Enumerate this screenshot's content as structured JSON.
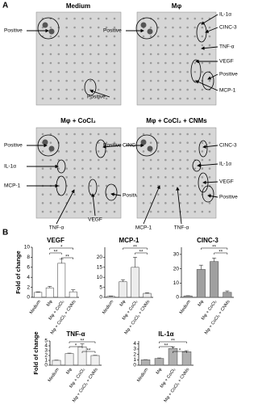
{
  "panel_a": {
    "letter": "A",
    "blots": [
      {
        "title": "Medium",
        "labels": [
          "Positive",
          "Positive"
        ]
      },
      {
        "title": "Mφ",
        "labels": [
          "Positive",
          "IL-1α",
          "CINC-3",
          "TNF-α",
          "VEGF",
          "Positive",
          "MCP-1"
        ]
      },
      {
        "title": "Mφ + CoCl₂",
        "labels": [
          "Positive",
          "IL-1α",
          "MCP-1",
          "CINC-3",
          "Positive",
          "VEGF",
          "TNF-α"
        ]
      },
      {
        "title": "Mφ + CoCl₂ + CNMs",
        "labels": [
          "Positive",
          "CINC-3",
          "IL-1α",
          "VEGF",
          "Positive",
          "MCP-1",
          "TNF-α"
        ]
      }
    ]
  },
  "panel_b": {
    "letter": "B"
  },
  "chart_data": [
    {
      "type": "bar",
      "title": "VEGF",
      "ylabel": "Fold of change",
      "categories": [
        "Medium",
        "Mφ",
        "Mφ + CoCl₂",
        "Mφ + CoCl₂ + CNMs"
      ],
      "values": [
        1,
        1.9,
        6.8,
        1.1
      ],
      "errors": [
        0.1,
        0.3,
        0.9,
        0.4
      ],
      "color": "#ffffff",
      "ylim": [
        0,
        10
      ],
      "yticks": [
        0,
        2,
        4,
        6,
        8,
        10
      ],
      "annotations": [
        {
          "label": "*",
          "from": 1,
          "to": 3
        },
        {
          "label": "**",
          "from": 1,
          "to": 2
        },
        {
          "label": "**",
          "from": 2,
          "to": 3
        }
      ]
    },
    {
      "type": "bar",
      "title": "MCP-1",
      "categories": [
        "Medium",
        "Mφ",
        "Mφ + CoCl₂",
        "Mφ + CoCl₂ + CNMs"
      ],
      "values": [
        0.5,
        7.8,
        15,
        2
      ],
      "errors": [
        0.2,
        1,
        5,
        0.3
      ],
      "color": "#ececec",
      "ylim": [
        0,
        25
      ],
      "yticks": [
        0,
        5,
        10,
        15,
        20
      ],
      "annotations": [
        {
          "label": "**",
          "from": 1,
          "to": 3
        },
        {
          "label": "**",
          "from": 2,
          "to": 3
        }
      ]
    },
    {
      "type": "bar",
      "title": "CINC-3",
      "categories": [
        "Medium",
        "Mφ",
        "Mφ + CoCl₂",
        "Mφ + CoCl₂ + CNMs"
      ],
      "values": [
        1,
        19.5,
        25,
        3.5
      ],
      "errors": [
        0.2,
        3,
        2.5,
        1
      ],
      "color": "#a0a0a0",
      "ylim": [
        0,
        35
      ],
      "yticks": [
        0,
        10,
        20,
        30
      ],
      "annotations": [
        {
          "label": "**",
          "from": 1,
          "to": 3
        },
        {
          "label": "**",
          "from": 2,
          "to": 3
        }
      ]
    },
    {
      "type": "bar",
      "title": "TNF-α",
      "ylabel": "Fold of change",
      "categories": [
        "Medium",
        "Mφ",
        "Mφ + CoCl₂",
        "Mφ + CoCl₂ + CNMs"
      ],
      "values": [
        1,
        2.4,
        3.8,
        2
      ],
      "errors": [
        0.05,
        0.1,
        0.6,
        0.05
      ],
      "color": "#f0f0f0",
      "ylim": [
        0,
        5
      ],
      "yticks": [
        0,
        1,
        2,
        3,
        4,
        5
      ],
      "annotations": [
        {
          "label": "**",
          "from": 1,
          "to": 3
        },
        {
          "label": "*",
          "from": 1,
          "to": 2
        },
        {
          "label": "**",
          "from": 2,
          "to": 3
        }
      ]
    },
    {
      "type": "bar",
      "title": "IL-1α",
      "categories": [
        "Medium",
        "Mφ",
        "Mφ + CoCl₂",
        "Mφ + CoCl₂ + CNMs"
      ],
      "values": [
        1,
        1.25,
        3.1,
        2.5
      ],
      "errors": [
        0.05,
        0.1,
        0.3,
        0.2
      ],
      "color": "#b0b0b0",
      "ylim": [
        0,
        4.5
      ],
      "yticks": [
        0,
        1,
        2,
        3,
        4
      ],
      "annotations": [
        {
          "label": "**",
          "from": 1,
          "to": 3
        },
        {
          "label": "**",
          "from": 1,
          "to": 2
        },
        {
          "label": "*",
          "from": 2,
          "to": 3
        }
      ]
    }
  ]
}
